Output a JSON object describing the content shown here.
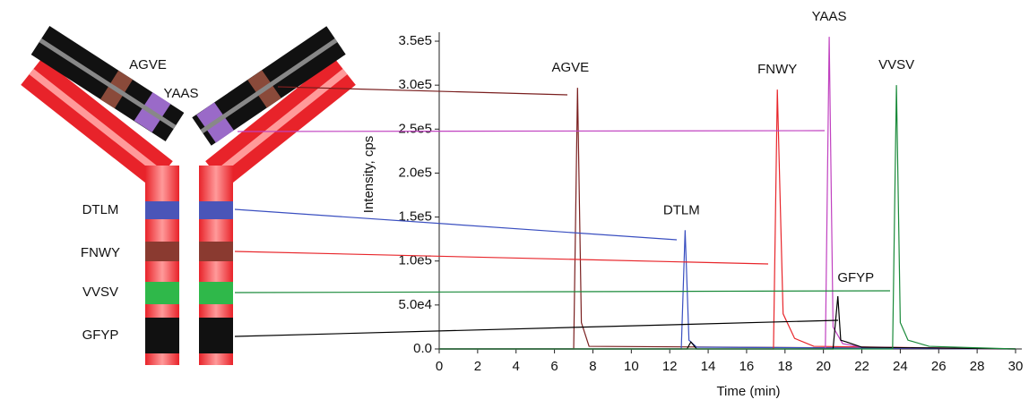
{
  "chart_data": {
    "type": "line",
    "x_label": "Time (min)",
    "y_label": "Intensity, cps",
    "xlim": [
      0,
      30
    ],
    "xticks": [
      0,
      2,
      4,
      6,
      8,
      10,
      12,
      14,
      16,
      18,
      20,
      22,
      24,
      26,
      28,
      30
    ],
    "ylim": [
      0,
      360000
    ],
    "yticks": [
      {
        "value": 0,
        "label": "0.0"
      },
      {
        "value": 50000,
        "label": "5.0e4"
      },
      {
        "value": 100000,
        "label": "1.0e5"
      },
      {
        "value": 150000,
        "label": "1.5e5"
      },
      {
        "value": 200000,
        "label": "2.0e5"
      },
      {
        "value": 250000,
        "label": "2.5e5"
      },
      {
        "value": 300000,
        "label": "3.0e5"
      },
      {
        "value": 350000,
        "label": "3.5e5"
      }
    ],
    "series": [
      {
        "name": "AGVE",
        "color": "#7a1f1f",
        "x": [
          0,
          7.0,
          7.2,
          7.4,
          7.8,
          30
        ],
        "values": [
          0,
          0,
          297000,
          30000,
          3000,
          0
        ]
      },
      {
        "name": "DTLM",
        "color": "#3a4fc0",
        "x": [
          0,
          12.6,
          12.8,
          13.0,
          13.4,
          30
        ],
        "values": [
          0,
          0,
          135000,
          10000,
          2000,
          0
        ]
      },
      {
        "name": "FNWY",
        "color": "#e8262b",
        "x": [
          0,
          17.4,
          17.6,
          17.9,
          18.5,
          19.5,
          30
        ],
        "values": [
          0,
          0,
          295000,
          40000,
          12000,
          3000,
          0
        ]
      },
      {
        "name": "YAAS",
        "color": "#c041c0",
        "x": [
          0,
          20.1,
          20.3,
          20.5,
          21.0,
          22.0,
          30
        ],
        "values": [
          0,
          0,
          355000,
          25000,
          6000,
          2000,
          0
        ]
      },
      {
        "name": "GFYP",
        "color": "#000000",
        "x": [
          0,
          12.9,
          13.1,
          13.4,
          20.5,
          20.75,
          20.9,
          21.2,
          22.0,
          30
        ],
        "values": [
          0,
          0,
          8000,
          0,
          0,
          60000,
          10000,
          8000,
          2000,
          0
        ]
      },
      {
        "name": "VVSV",
        "color": "#1a8a3a",
        "x": [
          0,
          23.6,
          23.8,
          24.0,
          24.4,
          25.5,
          30
        ],
        "values": [
          0,
          0,
          300000,
          30000,
          10000,
          3000,
          0
        ]
      }
    ]
  }
}
